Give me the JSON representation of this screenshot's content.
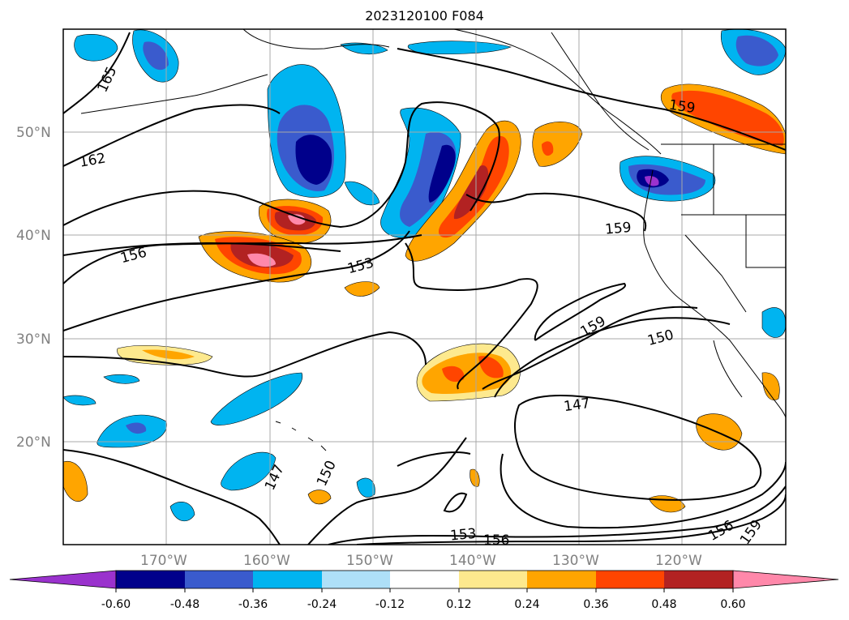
{
  "title": "2023120100 F084",
  "map": {
    "lon_range": [
      -180,
      -110
    ],
    "lat_range": [
      10,
      60
    ],
    "lon_ticks": [
      "170°W",
      "160°W",
      "150°W",
      "140°W",
      "130°W",
      "120°W"
    ],
    "lat_ticks": [
      "20°N",
      "30°N",
      "40°N",
      "50°N"
    ],
    "grid": true,
    "contour_labels": [
      "165",
      "162",
      "156",
      "153",
      "159",
      "159",
      "159",
      "150",
      "147",
      "147",
      "150",
      "153",
      "156",
      "156",
      "159"
    ]
  },
  "colorbar": {
    "tick_labels": [
      "-0.60",
      "-0.48",
      "-0.36",
      "-0.24",
      "-0.12",
      "0.12",
      "0.24",
      "0.36",
      "0.48",
      "0.60"
    ],
    "colors": [
      "#9a32cd",
      "#00008b",
      "#3a5bcd",
      "#00b4f0",
      "#aee0f8",
      "#ffffff",
      "#fde98e",
      "#ffa500",
      "#ff4500",
      "#b22222",
      "#ff88aa"
    ]
  }
}
